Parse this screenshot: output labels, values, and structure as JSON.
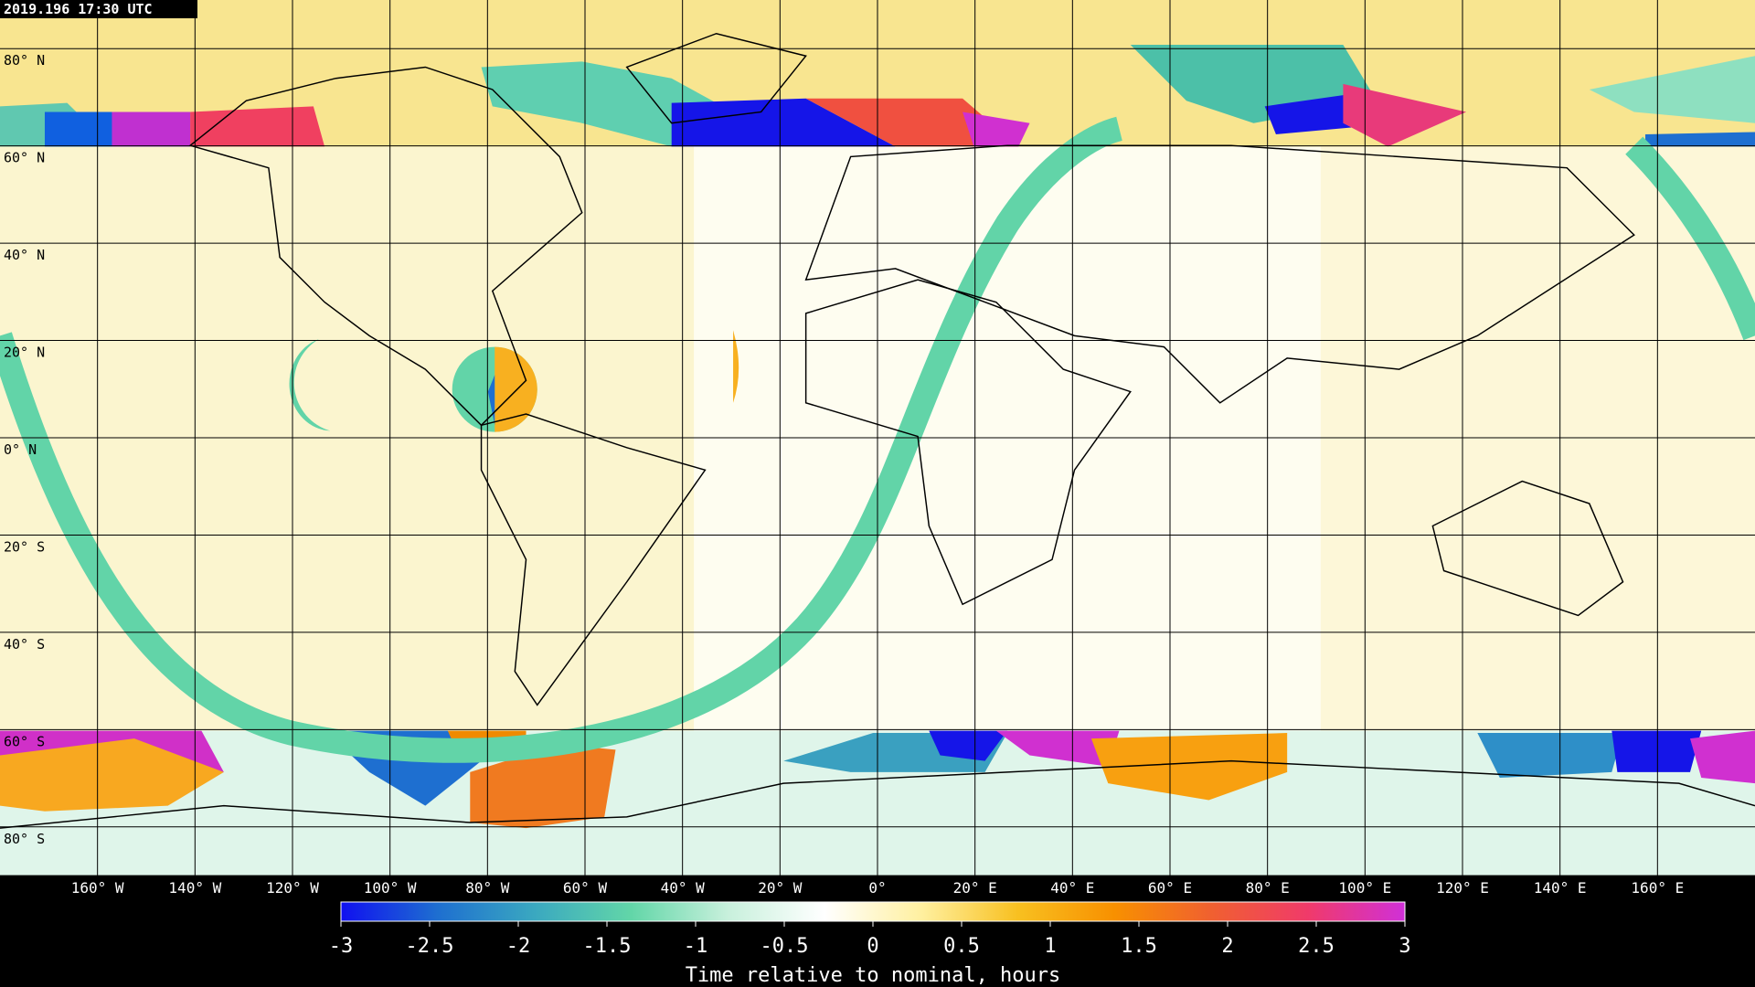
{
  "title": "2019.196 17:30 UTC",
  "map": {
    "lat_lines": [
      {
        "value": 80,
        "label": "80° N"
      },
      {
        "value": 60,
        "label": "60° N"
      },
      {
        "value": 40,
        "label": "40° N"
      },
      {
        "value": 20,
        "label": "20° N"
      },
      {
        "value": 0,
        "label": "0° N"
      },
      {
        "value": -20,
        "label": "20° S"
      },
      {
        "value": -40,
        "label": "40° S"
      },
      {
        "value": -60,
        "label": "60° S"
      },
      {
        "value": -80,
        "label": "80° S"
      }
    ],
    "lon_lines": [
      {
        "value": -160,
        "label": "160° W"
      },
      {
        "value": -140,
        "label": "140° W"
      },
      {
        "value": -120,
        "label": "120° W"
      },
      {
        "value": -100,
        "label": "100° W"
      },
      {
        "value": -80,
        "label": "80° W"
      },
      {
        "value": -60,
        "label": "60° W"
      },
      {
        "value": -40,
        "label": "40° W"
      },
      {
        "value": -20,
        "label": "20° W"
      },
      {
        "value": 0,
        "label": "0°"
      },
      {
        "value": 20,
        "label": "20° E"
      },
      {
        "value": 40,
        "label": "40° E"
      },
      {
        "value": 60,
        "label": "60° E"
      },
      {
        "value": 80,
        "label": "80° E"
      },
      {
        "value": 100,
        "label": "100° E"
      },
      {
        "value": 120,
        "label": "120° E"
      },
      {
        "value": 140,
        "label": "140° E"
      },
      {
        "value": 160,
        "label": "160° E"
      }
    ]
  },
  "colorbar": {
    "label": "Time relative to nominal, hours",
    "lim": [
      -3,
      3
    ],
    "ticks": [
      -3,
      -2.5,
      -2,
      -1.5,
      -1,
      -0.5,
      0,
      0.5,
      1,
      1.5,
      2,
      2.5,
      3
    ],
    "colors": [
      "#1010f0",
      "#1e6fd0",
      "#3aa8c0",
      "#62d6a8",
      "#c8f0dc",
      "#ffffff",
      "#fff0a0",
      "#f8c020",
      "#f89000",
      "#f06030",
      "#f03a6a",
      "#d030d8"
    ]
  }
}
